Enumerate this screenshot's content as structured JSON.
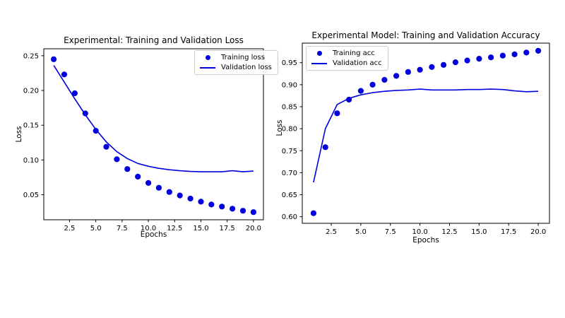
{
  "figure": {
    "background": "#ffffff",
    "accent_color": "#0000dd",
    "axis_color": "#000000"
  },
  "chart_data": [
    {
      "type": "scatter+line",
      "title": "Experimental: Training and Validation Loss",
      "xlabel": "Epochs",
      "ylabel": "Loss",
      "color": "#0000dd",
      "grid": false,
      "legend_position": "top-right",
      "x": [
        1,
        2,
        3,
        4,
        5,
        6,
        7,
        8,
        9,
        10,
        11,
        12,
        13,
        14,
        15,
        16,
        17,
        18,
        19,
        20
      ],
      "series": [
        {
          "name": "Training loss",
          "style": "scatter",
          "values": [
            0.245,
            0.223,
            0.196,
            0.167,
            0.142,
            0.119,
            0.101,
            0.087,
            0.076,
            0.067,
            0.06,
            0.054,
            0.049,
            0.0445,
            0.04,
            0.036,
            0.033,
            0.03,
            0.027,
            0.025
          ]
        },
        {
          "name": "Validation loss",
          "style": "line",
          "values": [
            0.236,
            0.212,
            0.188,
            0.165,
            0.144,
            0.126,
            0.112,
            0.102,
            0.095,
            0.091,
            0.088,
            0.086,
            0.0845,
            0.0835,
            0.083,
            0.083,
            0.083,
            0.0845,
            0.083,
            0.084
          ]
        }
      ],
      "xlim": [
        0.05,
        20.95
      ],
      "ylim": [
        0.014,
        0.26
      ],
      "xticks": [
        2.5,
        5.0,
        7.5,
        10.0,
        12.5,
        15.0,
        17.5,
        20.0
      ],
      "xtick_labels": [
        "2.5",
        "5.0",
        "7.5",
        "10.0",
        "12.5",
        "15.0",
        "17.5",
        "20.0"
      ],
      "yticks": [
        0.05,
        0.1,
        0.15,
        0.2,
        0.25
      ],
      "ytick_labels": [
        "0.05",
        "0.10",
        "0.15",
        "0.20",
        "0.25"
      ]
    },
    {
      "type": "scatter+line",
      "title": "Experimental Model: Training and Validation Accuracy",
      "xlabel": "Epochs",
      "ylabel": "Loss",
      "color": "#0000dd",
      "grid": false,
      "legend_position": "top-left",
      "x": [
        1,
        2,
        3,
        4,
        5,
        6,
        7,
        8,
        9,
        10,
        11,
        12,
        13,
        14,
        15,
        16,
        17,
        18,
        19,
        20
      ],
      "series": [
        {
          "name": "Training acc",
          "style": "scatter",
          "values": [
            0.608,
            0.758,
            0.835,
            0.866,
            0.886,
            0.9,
            0.911,
            0.92,
            0.929,
            0.934,
            0.94,
            0.945,
            0.951,
            0.955,
            0.959,
            0.962,
            0.966,
            0.969,
            0.973,
            0.977
          ]
        },
        {
          "name": "Validation acc",
          "style": "line",
          "values": [
            0.678,
            0.8,
            0.855,
            0.869,
            0.877,
            0.882,
            0.885,
            0.887,
            0.888,
            0.89,
            0.888,
            0.888,
            0.888,
            0.889,
            0.889,
            0.89,
            0.889,
            0.886,
            0.884,
            0.885
          ]
        }
      ],
      "xlim": [
        0.05,
        20.95
      ],
      "ylim": [
        0.585,
        0.9945
      ],
      "xticks": [
        2.5,
        5.0,
        7.5,
        10.0,
        12.5,
        15.0,
        17.5,
        20.0
      ],
      "xtick_labels": [
        "2.5",
        "5.0",
        "7.5",
        "10.0",
        "12.5",
        "15.0",
        "17.5",
        "20.0"
      ],
      "yticks": [
        0.6,
        0.65,
        0.7,
        0.75,
        0.8,
        0.85,
        0.9,
        0.95
      ],
      "ytick_labels": [
        "0.60",
        "0.65",
        "0.70",
        "0.75",
        "0.80",
        "0.85",
        "0.90",
        "0.95"
      ]
    }
  ]
}
